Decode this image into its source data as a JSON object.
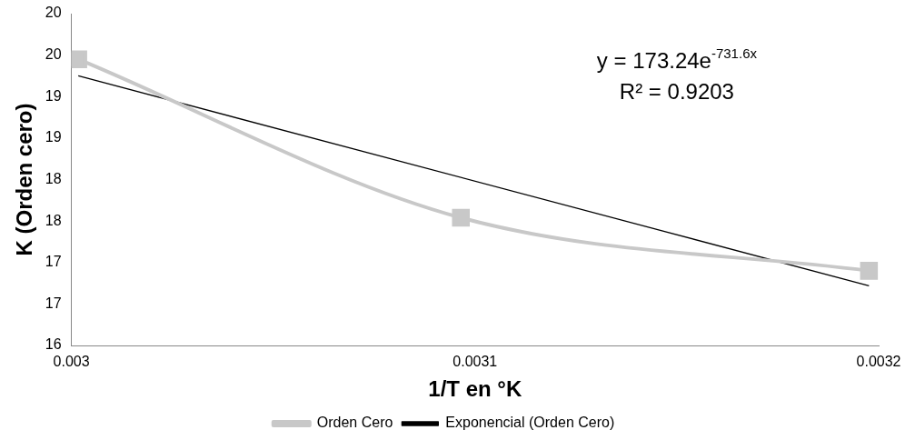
{
  "chart_data": {
    "type": "line",
    "xlabel": "1/T en °K",
    "ylabel": "K (Orden cero)",
    "xlim": [
      0.003,
      0.0032
    ],
    "xticks": [
      0.003,
      0.0031,
      0.0032
    ],
    "ylim": [
      16,
      20
    ],
    "yticks": [
      16,
      {
        "value": 16.5,
        "label": "17"
      },
      17,
      {
        "value": 17.5,
        "label": "18"
      },
      18,
      {
        "value": 18.5,
        "label": "19"
      },
      19,
      {
        "value": 19.5,
        "label": "20"
      },
      20
    ],
    "series": [
      {
        "name": "Orden Cero",
        "color": "#c8c8c8",
        "x": [
          0.0030017,
          0.0030965,
          0.0031976
        ],
        "values": [
          19.45,
          17.54,
          16.9
        ],
        "marker": "square"
      },
      {
        "name": "Exponencial (Orden Cero)",
        "color": "#000000",
        "x": [
          0.0030017,
          0.0031976
        ],
        "values": [
          19.25,
          16.72
        ],
        "marker": "none"
      }
    ],
    "annotations": [
      "y = 173.24e$^{-731.6x}$",
      "R² = 0.9203"
    ],
    "legend": "bottom",
    "grid": false
  }
}
